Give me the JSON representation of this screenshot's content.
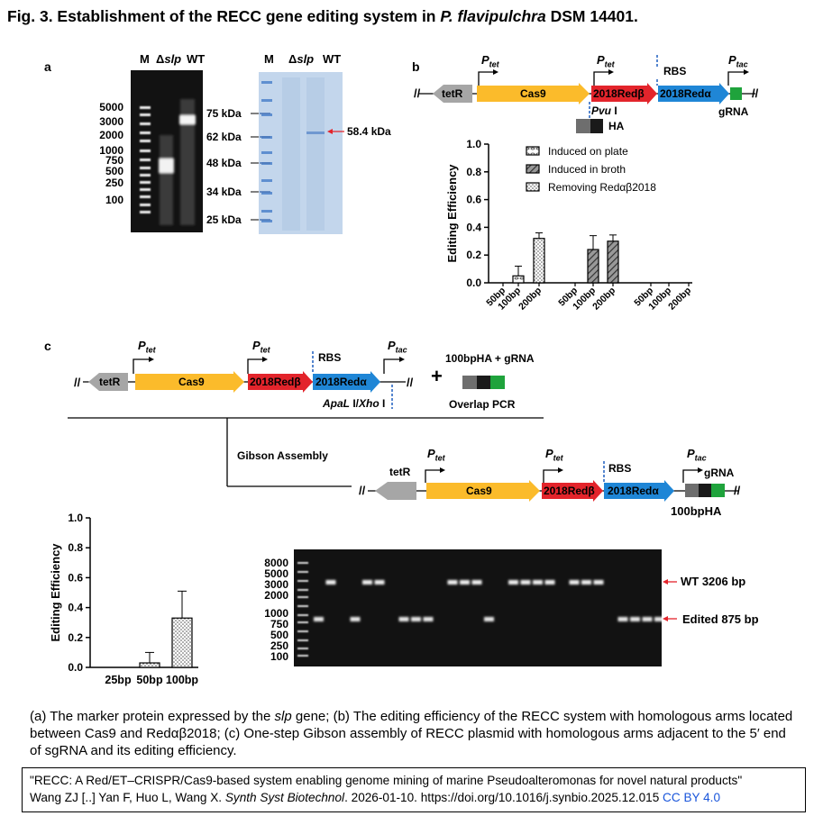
{
  "figure": {
    "title_prefix": "Fig. 3. Establishment of the RECC gene editing system in ",
    "title_species": "P. flavipulchra",
    "title_suffix": " DSM 14401.",
    "panels": {
      "a": "a",
      "b": "b",
      "c": "c"
    }
  },
  "panel_a": {
    "gel_lanes": [
      "M",
      "Δ",
      "slp",
      "WT"
    ],
    "gel_markers": [
      "5000",
      "3000",
      "2000",
      "1000",
      "750",
      "500",
      "250",
      "100"
    ],
    "blot_lanes": [
      "M",
      "Δ",
      "slp",
      "WT"
    ],
    "blot_markers": [
      "75 kDa",
      "62 kDa",
      "48 kDa",
      "34 kDa",
      "25 kDa"
    ],
    "band_label": "58.4 kDa"
  },
  "construct": {
    "tetR": "tetR",
    "cas9": "Cas9",
    "redb": "2018Redβ",
    "reda": "2018Redα",
    "p_tet": "P",
    "p_sub_tet": "tet",
    "p_sub_tac": "tac",
    "rbs": "RBS",
    "grna": "gRNA",
    "pvu": "Pvu",
    "pvu_suffix": " I",
    "ha": "HA",
    "slash": "//"
  },
  "chart_b": {
    "type": "bar",
    "ylabel": "Editing Efficiency",
    "ylim": [
      0,
      1.0
    ],
    "yticks": [
      "0.0",
      "0.2",
      "0.4",
      "0.6",
      "0.8",
      "1.0"
    ],
    "categories": [
      "50bp",
      "100bp",
      "200bp",
      "50bp",
      "100bp",
      "200bp",
      "50bp",
      "100bp",
      "200bp"
    ],
    "series": [
      {
        "name": "Induced on plate",
        "values": [
          0,
          0.05,
          0.32
        ],
        "errors": [
          0,
          0.07,
          0.04
        ]
      },
      {
        "name": "Induced in broth",
        "values": [
          0,
          0.24,
          0.3
        ],
        "errors": [
          0,
          0.1,
          0.045
        ]
      },
      {
        "name": "Removing Redαβ2018",
        "values": [
          0,
          0,
          0
        ],
        "errors": [
          0,
          0,
          0
        ]
      }
    ]
  },
  "panel_c": {
    "plus": "+",
    "insert_label": "100bpHA + gRNA",
    "overlap_pcr": "Overlap PCR",
    "gibson": "Gibson Assembly",
    "apal": "ApaL",
    "apal_mid": " I/",
    "xho": "Xho",
    "xho_suffix": " I",
    "ha100": "100bpHA"
  },
  "chart_c": {
    "type": "bar",
    "ylabel": "Editing Efficiency",
    "ylim": [
      0,
      1.0
    ],
    "yticks": [
      "0.0",
      "0.2",
      "0.4",
      "0.6",
      "0.8",
      "1.0"
    ],
    "categories": [
      "25bp",
      "50bp",
      "100bp"
    ],
    "values": [
      0,
      0.03,
      0.33
    ],
    "errors": [
      0,
      0.07,
      0.18
    ]
  },
  "gel_c": {
    "markers": [
      "8000",
      "5000",
      "3000",
      "2000",
      "1000",
      "750",
      "500",
      "250",
      "100"
    ],
    "wt_label": "WT 3206 bp",
    "edited_label": "Edited 875 bp"
  },
  "caption": {
    "p1": "(a) The marker protein expressed by the ",
    "p1_italic": "slp",
    "p2": " gene; (b) The editing efficiency of the RECC system with homologous arms located between Cas9 and Redαβ2018; (c) One-step Gibson assembly of RECC plasmid with homologous arms adjacent to the 5′ end of sgRNA and its editing efficiency."
  },
  "citation": {
    "line1": "\"RECC: A Red/ET–CRISPR/Cas9-based system enabling genome mining of marine Pseudoalteromonas for novel natural products\"",
    "authors": "Wang ZJ [..] Yan F, Huo L, Wang X. ",
    "journal": "Synth Syst Biotechnol",
    "date": ". 2026-01-10. ",
    "doi": "https://doi.org/10.1016/j.synbio.2025.12.015",
    "license": "CC BY 4.0"
  },
  "colors": {
    "tetR": "#a6a6a6",
    "cas9": "#fbbb2b",
    "redb": "#e3242b",
    "reda": "#1f86d6",
    "grna": "#1fa33c",
    "ha_grey": "#6e6e6e",
    "ha_black": "#1a1a1a",
    "dash_blue": "#1f5fbf",
    "arrow_red": "#e3242b"
  }
}
